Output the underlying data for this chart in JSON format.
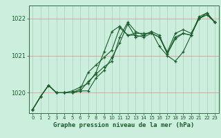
{
  "title": "Graphe pression niveau de la mer (hPa)",
  "bg_color": "#cceedd",
  "grid_color_h": "#dd9999",
  "grid_color_v": "#aaccbb",
  "line_color": "#1a5c2a",
  "xlim": [
    -0.5,
    23.5
  ],
  "ylim": [
    1019.45,
    1022.35
  ],
  "yticks": [
    1020,
    1021,
    1022
  ],
  "xticks": [
    0,
    1,
    2,
    3,
    4,
    5,
    6,
    7,
    8,
    9,
    10,
    11,
    12,
    13,
    14,
    15,
    16,
    17,
    18,
    19,
    20,
    21,
    22,
    23
  ],
  "series": [
    [
      1019.55,
      1019.9,
      1020.2,
      1020.0,
      1020.0,
      1020.0,
      1020.05,
      1020.3,
      1020.5,
      1020.7,
      1020.85,
      1021.5,
      1021.9,
      1021.65,
      1021.55,
      1021.65,
      1021.55,
      1021.05,
      1021.5,
      1021.6,
      1021.55,
      1022.05,
      1022.15,
      1021.9
    ],
    [
      1019.55,
      1019.9,
      1020.2,
      1020.0,
      1020.0,
      1020.0,
      1020.05,
      1020.05,
      1020.4,
      1020.6,
      1020.95,
      1021.35,
      1021.85,
      1021.5,
      1021.55,
      1021.65,
      1021.25,
      1021.0,
      1020.85,
      1021.1,
      1021.55,
      1022.0,
      1022.1,
      1021.9
    ],
    [
      1019.55,
      1019.9,
      1020.2,
      1020.0,
      1020.0,
      1020.0,
      1020.1,
      1020.55,
      1020.75,
      1020.95,
      1021.15,
      1021.75,
      1021.55,
      1021.55,
      1021.5,
      1021.6,
      1021.5,
      1021.05,
      1021.45,
      1021.6,
      1021.55,
      1022.0,
      1022.1,
      1021.9
    ],
    [
      1019.55,
      1019.9,
      1020.2,
      1020.0,
      1020.0,
      1020.05,
      1020.15,
      1020.25,
      1020.55,
      1021.1,
      1021.65,
      1021.8,
      1021.55,
      1021.6,
      1021.6,
      1021.6,
      1021.5,
      1021.1,
      1021.6,
      1021.7,
      1021.6,
      1022.0,
      1022.15,
      1021.9
    ]
  ]
}
